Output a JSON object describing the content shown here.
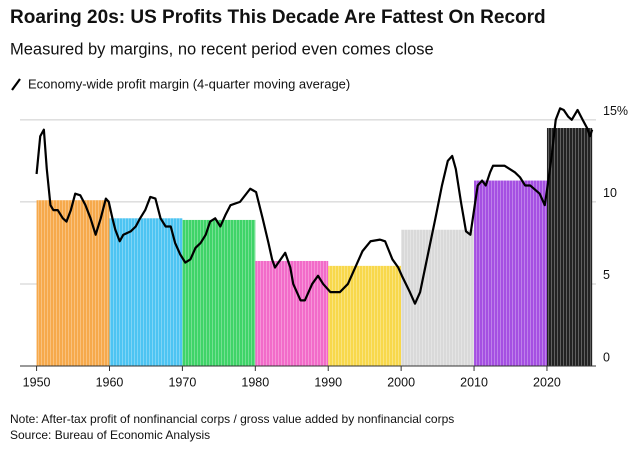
{
  "chart_data": {
    "type": "line",
    "title": "Roaring 20s: US Profits This Decade Are Fattest On Record",
    "subtitle": "Measured by margins, no recent period even comes close",
    "legend_label": "Economy-wide profit margin (4-quarter moving average)",
    "note": "Note: After-tax profit of nonfinancial corps / gross value added by nonfinancial corps",
    "source": "Source: Bureau of Economic Analysis",
    "xlim": [
      1948,
      2027
    ],
    "xticks": [
      1950,
      1960,
      1970,
      1980,
      1990,
      2000,
      2010,
      2020
    ],
    "ylim": [
      0,
      17
    ],
    "yticks": [
      0,
      5,
      10,
      {
        "value": 15,
        "label": "15%"
      }
    ],
    "grid": true,
    "line_color": "#000000",
    "bars": {
      "start": [
        1950,
        1960,
        1970,
        1980,
        1990,
        2000,
        2010,
        2020
      ],
      "end": [
        1960,
        1970,
        1980,
        1990,
        2000,
        2010,
        2020,
        2026.2
      ],
      "values": [
        10.1,
        9.0,
        8.9,
        6.4,
        6.1,
        8.3,
        11.3,
        14.5
      ],
      "colors": [
        "#f6a94b",
        "#4dc4f2",
        "#3fd468",
        "#f26bc9",
        "#f8d84b",
        "#d9d9d9",
        "#a54fe2",
        "#222222"
      ]
    },
    "x": [
      1950.0,
      1950.5,
      1951.0,
      1951.4,
      1951.9,
      1952.3,
      1952.9,
      1953.6,
      1954.1,
      1954.7,
      1955.3,
      1956.0,
      1956.7,
      1957.4,
      1958.1,
      1958.8,
      1959.5,
      1959.9,
      1960.4,
      1960.8,
      1961.4,
      1961.9,
      1962.9,
      1963.6,
      1964.2,
      1964.9,
      1965.6,
      1966.3,
      1967.0,
      1967.7,
      1968.4,
      1969.0,
      1969.7,
      1970.4,
      1971.1,
      1971.8,
      1972.5,
      1973.2,
      1973.8,
      1974.5,
      1975.2,
      1975.9,
      1976.6,
      1977.9,
      1979.3,
      1980.1,
      1981.0,
      1981.8,
      1982.3,
      1982.7,
      1984.1,
      1984.8,
      1985.2,
      1986.2,
      1986.8,
      1987.8,
      1988.6,
      1989.3,
      1990.3,
      1991.6,
      1992.7,
      1993.7,
      1994.7,
      1995.8,
      1997.1,
      1997.8,
      1998.8,
      1999.6,
      2000.1,
      2001.2,
      2001.9,
      2002.6,
      2003.3,
      2004.0,
      2004.7,
      2005.6,
      2006.4,
      2007.0,
      2007.5,
      2008.2,
      2008.9,
      2009.5,
      2010.0,
      2010.5,
      2011.1,
      2011.6,
      2012.2,
      2012.6,
      2013.6,
      2014.2,
      2014.9,
      2015.6,
      2016.3,
      2017.0,
      2017.7,
      2019.0,
      2019.5,
      2019.7,
      2020.1,
      2020.7,
      2021.2,
      2021.8,
      2022.3,
      2022.9,
      2023.4,
      2024.2,
      2024.9,
      2025.5,
      2025.9,
      2026.2
    ],
    "values": [
      11.7,
      14.0,
      14.4,
      12.0,
      9.8,
      9.5,
      9.5,
      9.0,
      8.8,
      9.5,
      10.5,
      10.4,
      9.8,
      9.0,
      8.0,
      9.0,
      10.2,
      10.0,
      9.0,
      8.3,
      7.6,
      8.0,
      8.2,
      8.5,
      9.0,
      9.5,
      10.3,
      10.2,
      9.0,
      8.5,
      8.5,
      7.5,
      6.8,
      6.3,
      6.5,
      7.2,
      7.5,
      8.0,
      8.8,
      9.0,
      8.5,
      9.2,
      9.8,
      10.0,
      10.8,
      10.6,
      9.0,
      7.5,
      6.5,
      6.0,
      6.9,
      6.0,
      5.0,
      4.0,
      4.0,
      5.0,
      5.5,
      5.0,
      4.5,
      4.5,
      5.0,
      6.0,
      7.0,
      7.6,
      7.7,
      7.6,
      6.5,
      6.0,
      5.5,
      4.5,
      3.8,
      4.5,
      6.0,
      7.5,
      9.0,
      11.0,
      12.5,
      12.8,
      12.0,
      10.0,
      8.2,
      8.0,
      9.5,
      11.0,
      11.3,
      11.0,
      11.8,
      12.2,
      12.2,
      12.2,
      12.0,
      11.8,
      11.5,
      11.0,
      11.0,
      10.5,
      10.0,
      9.8,
      11.0,
      13.0,
      15.0,
      15.7,
      15.6,
      15.2,
      15.0,
      15.6,
      15.0,
      14.5,
      14.0,
      14.4
    ]
  }
}
